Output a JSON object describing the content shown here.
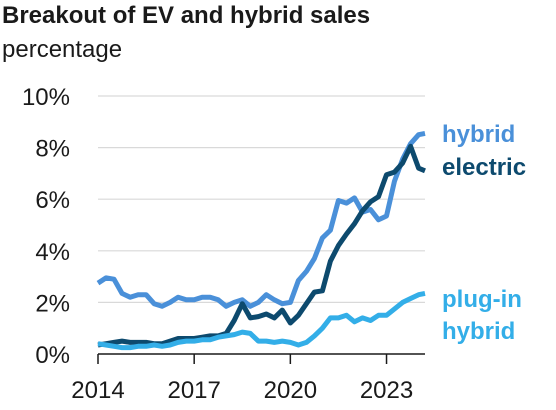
{
  "chart_data": {
    "type": "line",
    "title": "Breakout of EV and hybrid sales",
    "subtitle": "percentage",
    "xlabel": "",
    "ylabel": "",
    "xlim": [
      2014,
      2024.2
    ],
    "ylim": [
      0,
      10
    ],
    "x_ticks": [
      2014,
      2017,
      2020,
      2023
    ],
    "x_tick_labels": [
      "2014",
      "2017",
      "2020",
      "2023"
    ],
    "y_ticks": [
      0,
      2,
      4,
      6,
      8,
      10
    ],
    "y_tick_labels": [
      "0%",
      "2%",
      "4%",
      "6%",
      "8%",
      "10%"
    ],
    "grid": "horizontal",
    "legend": "direct-labels-right",
    "series": [
      {
        "name": "hybrid",
        "label_lines": [
          "hybrid"
        ],
        "color": "#4a90d9",
        "x": [
          2014.0,
          2014.25,
          2014.5,
          2014.75,
          2015.0,
          2015.25,
          2015.5,
          2015.75,
          2016.0,
          2016.25,
          2016.5,
          2016.75,
          2017.0,
          2017.25,
          2017.5,
          2017.75,
          2018.0,
          2018.25,
          2018.5,
          2018.75,
          2019.0,
          2019.25,
          2019.5,
          2019.75,
          2020.0,
          2020.25,
          2020.5,
          2020.75,
          2021.0,
          2021.25,
          2021.5,
          2021.75,
          2022.0,
          2022.25,
          2022.5,
          2022.75,
          2023.0,
          2023.25,
          2023.5,
          2023.75,
          2024.0,
          2024.2
        ],
        "values": [
          2.75,
          2.95,
          2.9,
          2.35,
          2.2,
          2.3,
          2.3,
          1.95,
          1.85,
          2.0,
          2.2,
          2.1,
          2.1,
          2.2,
          2.2,
          2.1,
          1.85,
          2.0,
          2.1,
          1.85,
          2.0,
          2.3,
          2.1,
          1.95,
          2.0,
          2.85,
          3.2,
          3.7,
          4.5,
          4.8,
          5.95,
          5.85,
          6.05,
          5.5,
          5.6,
          5.2,
          5.35,
          6.7,
          7.55,
          8.15,
          8.5,
          8.55
        ]
      },
      {
        "name": "electric",
        "label_lines": [
          "electric"
        ],
        "color": "#0d4a6e",
        "x": [
          2014.0,
          2014.25,
          2014.5,
          2014.75,
          2015.0,
          2015.25,
          2015.5,
          2015.75,
          2016.0,
          2016.25,
          2016.5,
          2016.75,
          2017.0,
          2017.25,
          2017.5,
          2017.75,
          2018.0,
          2018.25,
          2018.5,
          2018.75,
          2019.0,
          2019.25,
          2019.5,
          2019.75,
          2020.0,
          2020.25,
          2020.5,
          2020.75,
          2021.0,
          2021.25,
          2021.5,
          2021.75,
          2022.0,
          2022.25,
          2022.5,
          2022.75,
          2023.0,
          2023.25,
          2023.5,
          2023.75,
          2024.0,
          2024.2
        ],
        "values": [
          0.35,
          0.4,
          0.45,
          0.5,
          0.45,
          0.45,
          0.45,
          0.4,
          0.4,
          0.5,
          0.6,
          0.6,
          0.6,
          0.65,
          0.7,
          0.7,
          0.8,
          1.3,
          1.95,
          1.4,
          1.45,
          1.55,
          1.4,
          1.7,
          1.2,
          1.5,
          1.95,
          2.4,
          2.45,
          3.6,
          4.2,
          4.65,
          5.05,
          5.55,
          5.9,
          6.1,
          6.95,
          7.05,
          7.4,
          8.05,
          7.2,
          7.1
        ]
      },
      {
        "name": "plug-in hybrid",
        "label_lines": [
          "plug-in",
          "hybrid"
        ],
        "color": "#33aee8",
        "x": [
          2014.0,
          2014.25,
          2014.5,
          2014.75,
          2015.0,
          2015.25,
          2015.5,
          2015.75,
          2016.0,
          2016.25,
          2016.5,
          2016.75,
          2017.0,
          2017.25,
          2017.5,
          2017.75,
          2018.0,
          2018.25,
          2018.5,
          2018.75,
          2019.0,
          2019.25,
          2019.5,
          2019.75,
          2020.0,
          2020.25,
          2020.5,
          2020.75,
          2021.0,
          2021.25,
          2021.5,
          2021.75,
          2022.0,
          2022.25,
          2022.5,
          2022.75,
          2023.0,
          2023.25,
          2023.5,
          2023.75,
          2024.0,
          2024.2
        ],
        "values": [
          0.4,
          0.35,
          0.3,
          0.25,
          0.25,
          0.3,
          0.3,
          0.35,
          0.3,
          0.35,
          0.45,
          0.5,
          0.5,
          0.55,
          0.55,
          0.65,
          0.7,
          0.75,
          0.85,
          0.8,
          0.5,
          0.5,
          0.45,
          0.5,
          0.45,
          0.35,
          0.45,
          0.7,
          1.0,
          1.4,
          1.4,
          1.5,
          1.25,
          1.4,
          1.3,
          1.5,
          1.5,
          1.75,
          2.0,
          2.15,
          2.3,
          2.35
        ]
      }
    ]
  }
}
